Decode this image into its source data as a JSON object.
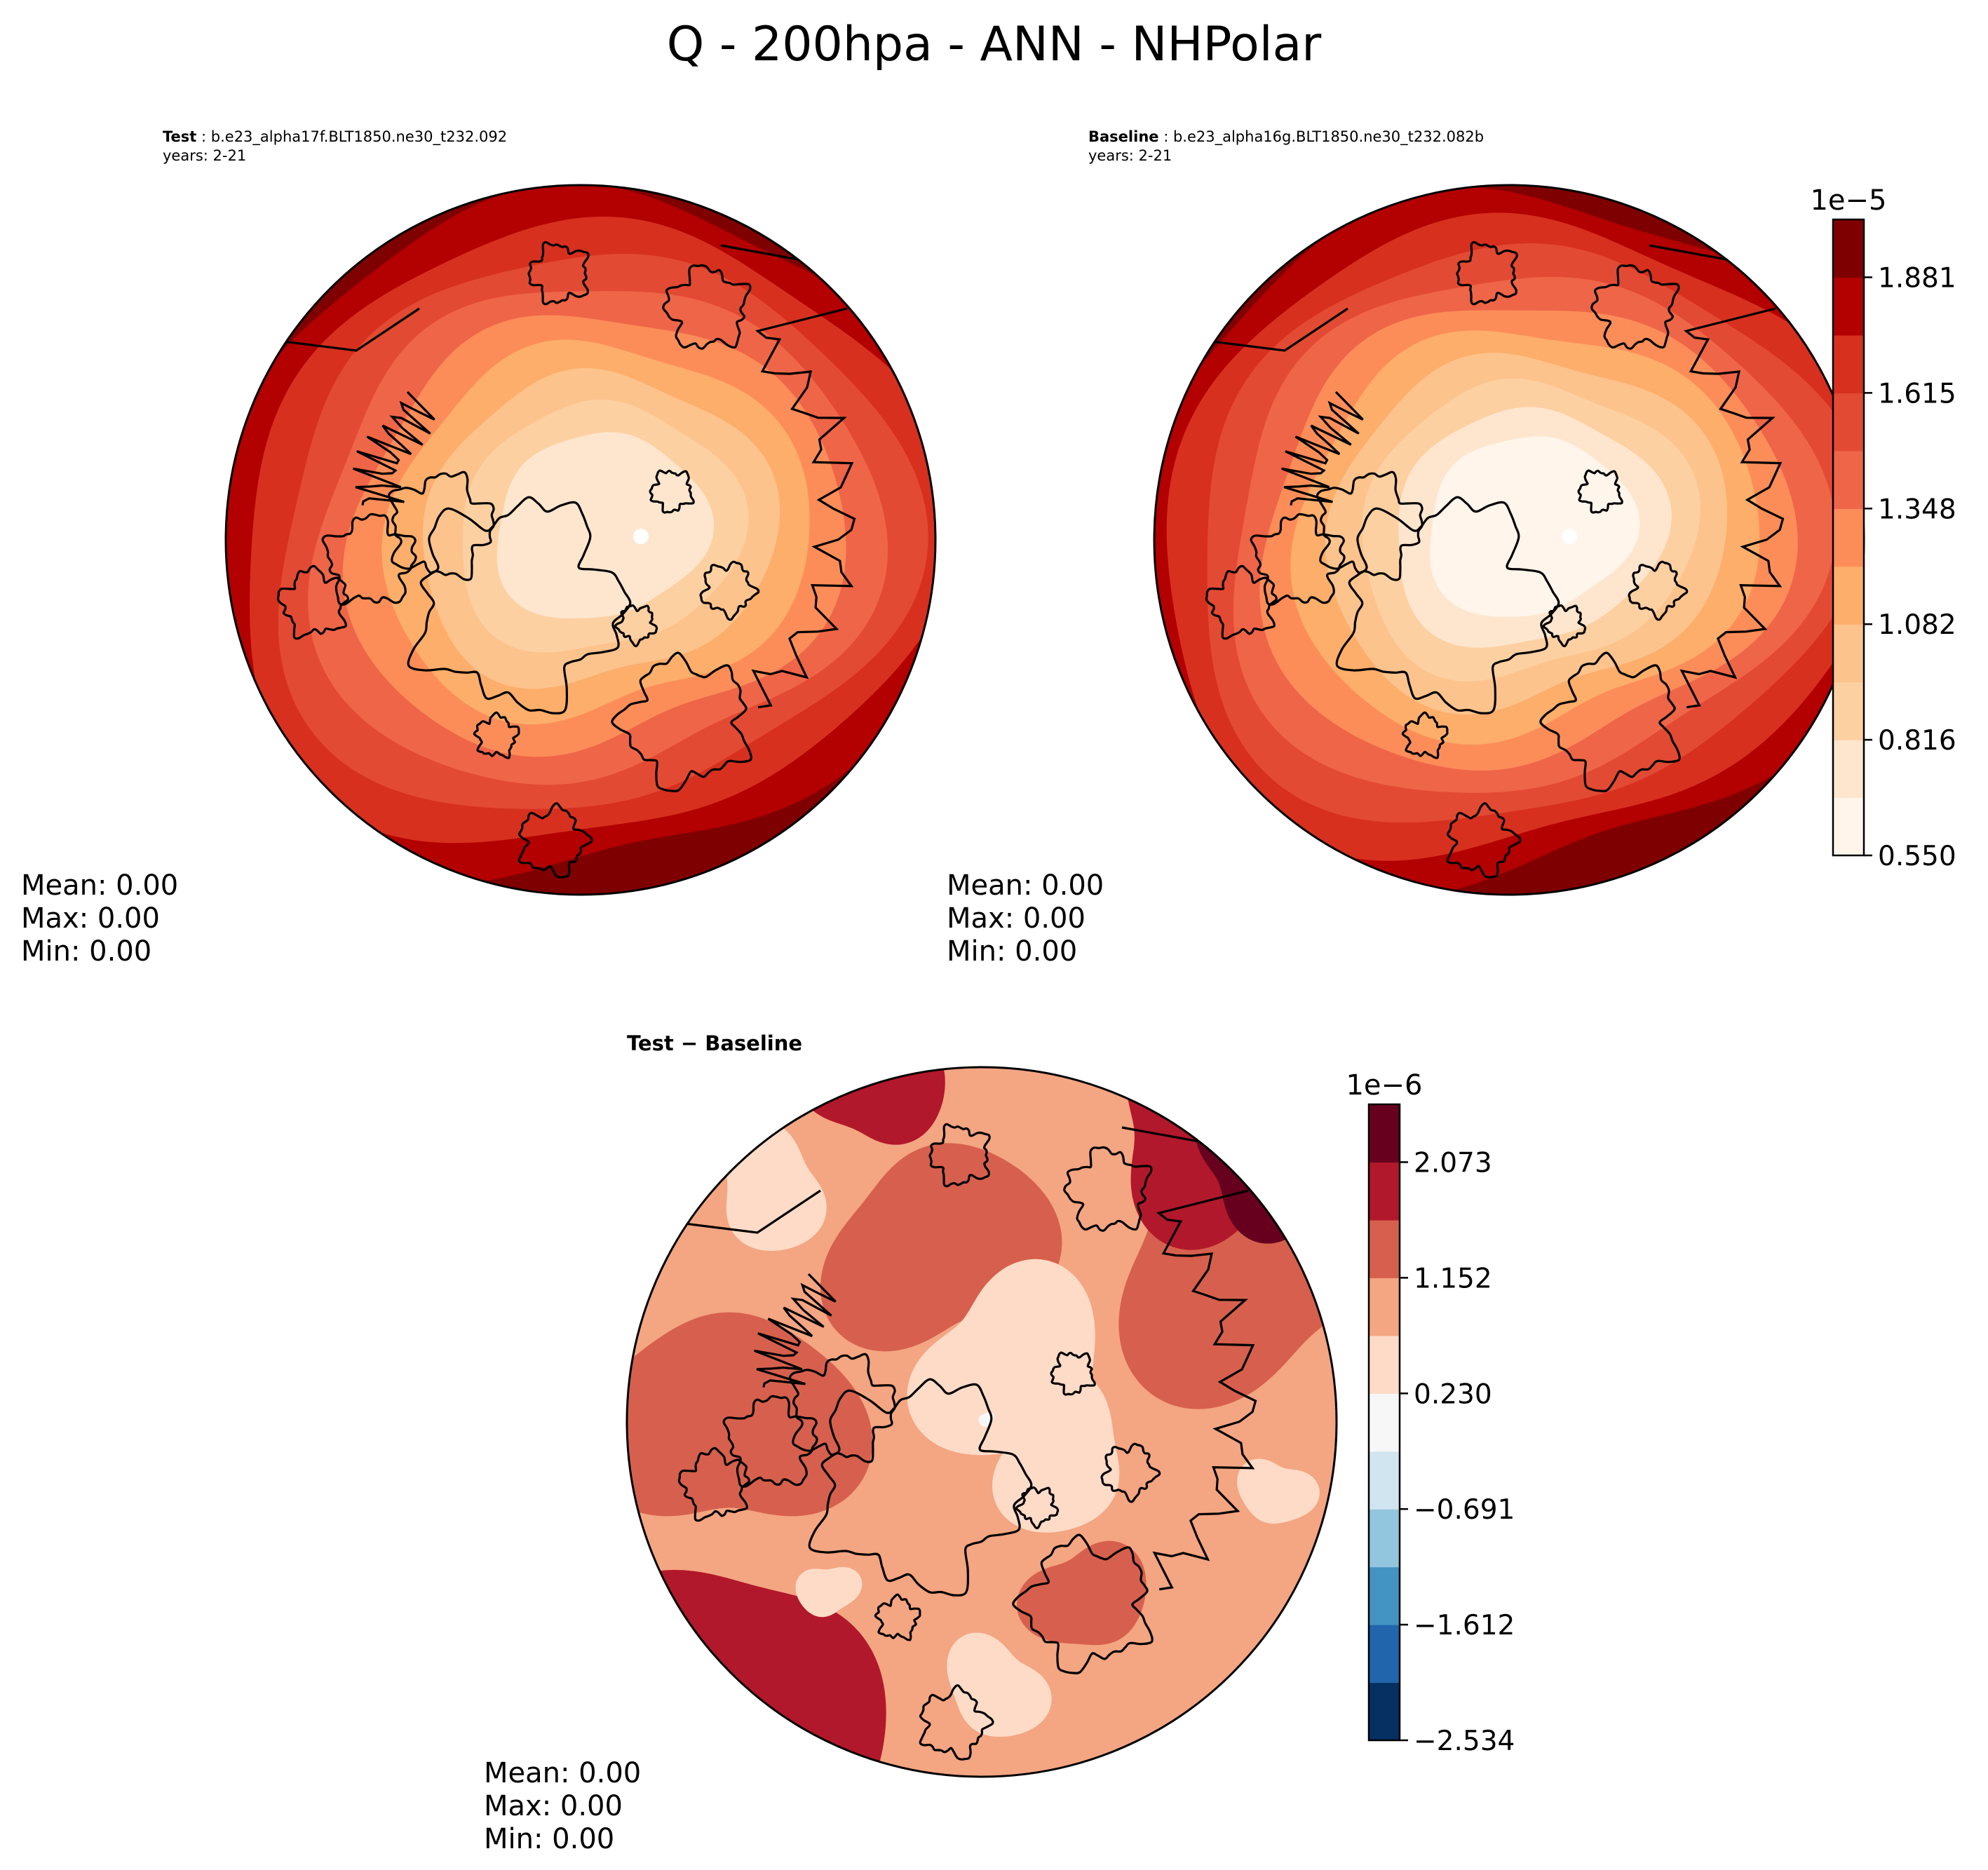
{
  "title": "Q - 200hpa - ANN - NHPolar",
  "panels": {
    "test": {
      "label": "Test",
      "case": "b.e23_alpha17f.BLT1850.ne30_t232.092",
      "years": "years: 2-21",
      "stats": {
        "mean": "Mean:  0.00",
        "max": "Max:  0.00",
        "min": "Min:  0.00"
      }
    },
    "baseline": {
      "label": "Baseline",
      "case": "b.e23_alpha16g.BLT1850.ne30_t232.082b",
      "years": "years: 2-21",
      "stats": {
        "mean": "Mean:  0.00",
        "max": "Max:  0.00",
        "min": "Min:  0.00"
      }
    },
    "diff": {
      "label_test": "Test",
      "label_op": " − ",
      "label_base": "Baseline",
      "stats": {
        "mean": "Mean:  0.00",
        "max": "Max:  0.00",
        "min": "Min:  0.00"
      }
    }
  },
  "chart_data": [
    {
      "type": "heatmap",
      "name": "Test field (polar stereographic map)",
      "projection": "north polar stereographic",
      "field_levels": [
        1,
        2,
        3,
        4,
        5,
        6,
        7,
        8,
        9,
        10
      ]
    },
    {
      "type": "heatmap",
      "name": "Baseline field (polar stereographic map)",
      "projection": "north polar stereographic",
      "field_levels": [
        0,
        1,
        2,
        3,
        4,
        5,
        6,
        7,
        8,
        9,
        10
      ]
    },
    {
      "type": "heatmap",
      "name": "Test - Baseline difference",
      "projection": "north polar stereographic",
      "field_levels": [
        5,
        6,
        7,
        8,
        9
      ]
    }
  ],
  "colorbars": {
    "main": {
      "multiplier": "1e−5",
      "tick_labels": [
        "0.550",
        "0.816",
        "1.082",
        "1.348",
        "1.615",
        "1.881"
      ],
      "colors": [
        "#fff5eb",
        "#fee6ce",
        "#fdd0a2",
        "#fdc38d",
        "#fdae6b",
        "#fc8d59",
        "#ef6548",
        "#e34a33",
        "#d7301f",
        "#b30000",
        "#7f0000"
      ]
    },
    "diff": {
      "multiplier": "1e−6",
      "tick_labels": [
        "−2.534",
        "−1.612",
        "−0.691",
        "0.230",
        "1.152",
        "2.073"
      ],
      "colors": [
        "#053061",
        "#2166ac",
        "#4393c3",
        "#92c5de",
        "#d1e5f0",
        "#f7f7f7",
        "#fddbc7",
        "#f4a582",
        "#d6604d",
        "#b2182b",
        "#67001f"
      ]
    }
  }
}
